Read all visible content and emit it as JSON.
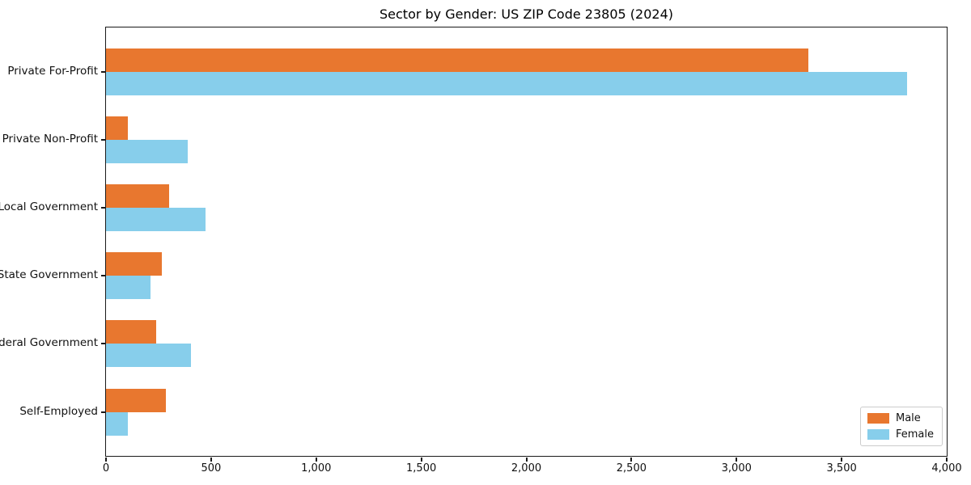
{
  "title": "Sector by Gender: US ZIP Code 23805 (2024)",
  "chart_data": {
    "type": "bar",
    "orientation": "horizontal",
    "title": "Sector by Gender: US ZIP Code 23805 (2024)",
    "categories": [
      "Private For-Profit",
      "Private Non-Profit",
      "Local Government",
      "State Government",
      "Federal Government",
      "Self-Employed"
    ],
    "series": [
      {
        "name": "Male",
        "color": "#E8772F",
        "values": [
          3340,
          105,
          300,
          265,
          240,
          285
        ]
      },
      {
        "name": "Female",
        "color": "#87CEEB",
        "values": [
          3810,
          390,
          475,
          210,
          405,
          105
        ]
      }
    ],
    "xlabel": "",
    "ylabel": "",
    "xlim": [
      0,
      4000
    ],
    "xticks": [
      0,
      500,
      1000,
      1500,
      2000,
      2500,
      3000,
      3500,
      4000
    ],
    "xtick_labels": [
      "0",
      "500",
      "1,000",
      "1,500",
      "2,000",
      "2,500",
      "3,000",
      "3,500",
      "4,000"
    ],
    "grid": false,
    "legend_position": "lower right",
    "legend_items": [
      {
        "label": "Male",
        "color": "#E8772F"
      },
      {
        "label": "Female",
        "color": "#87CEEB"
      }
    ],
    "plot_background": "#ffffff",
    "spine_color": "#1a1a1a"
  }
}
